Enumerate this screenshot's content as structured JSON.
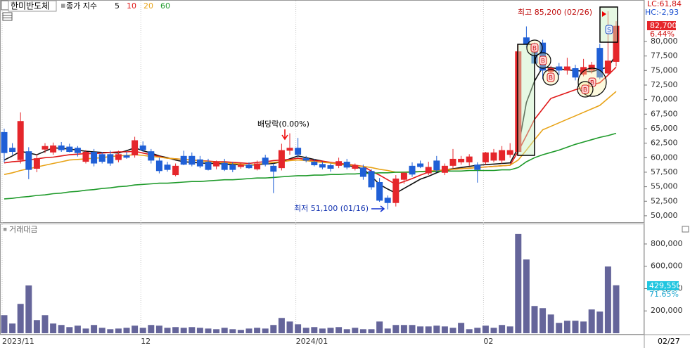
{
  "chart_data": {
    "type": "candlestick",
    "title": "한미반도체",
    "ma_label": "종가 지수",
    "corner_top": "LC:61,84",
    "corner_bottom": "HC:-2,93",
    "price_tag": "82,700",
    "price_change": "6.44%",
    "dividend_note": "배당락(0.00%)",
    "high_note": "최고 85,200 (02/26)",
    "low_note": "최저 51,100 (01/16)",
    "signals": [
      "B",
      "B",
      "B",
      "B",
      "B",
      "S"
    ],
    "up_color": "#e5262b",
    "down_color": "#1f5fd6",
    "categories": [
      "2023/11",
      null,
      null,
      null,
      null,
      null,
      null,
      null,
      null,
      null,
      null,
      null,
      null,
      null,
      null,
      null,
      null,
      "12",
      null,
      null,
      null,
      null,
      null,
      null,
      null,
      null,
      null,
      null,
      null,
      null,
      null,
      null,
      null,
      null,
      null,
      null,
      "2024/01",
      null,
      null,
      null,
      null,
      null,
      null,
      null,
      null,
      null,
      null,
      null,
      null,
      null,
      null,
      null,
      null,
      null,
      null,
      null,
      null,
      null,
      null,
      "02",
      null,
      null,
      null,
      null,
      null,
      null,
      null,
      null,
      null,
      null,
      null,
      null,
      null,
      null,
      null,
      null
    ],
    "x_cursor_label": "02/27",
    "open": [
      64400,
      61700,
      59600,
      61100,
      58100,
      61400,
      60900,
      62100,
      61900,
      61700,
      59300,
      61000,
      60600,
      60600,
      59600,
      60400,
      60400,
      62100,
      61100,
      59500,
      58800,
      57000,
      60300,
      60300,
      59700,
      59300,
      58500,
      59100,
      58800,
      58400,
      58800,
      58000,
      60000,
      58600,
      58200,
      61200,
      61700,
      59900,
      59300,
      58900,
      58700,
      58600,
      59300,
      58100,
      58300,
      57700,
      55800,
      53100,
      52200,
      56200,
      58600,
      59000,
      57300,
      59500,
      57400,
      58600,
      59200,
      59200,
      58800,
      59200,
      59500,
      59500,
      60500,
      61000,
      80700,
      78300,
      79800,
      74800,
      75700,
      75000,
      75400,
      74300,
      75000,
      78900,
      74500,
      76500
    ],
    "high": [
      65000,
      62500,
      67800,
      61800,
      60600,
      62500,
      62600,
      62700,
      62400,
      62000,
      61300,
      61500,
      61000,
      61200,
      61200,
      61000,
      63600,
      62800,
      61500,
      60000,
      59300,
      59000,
      61200,
      60900,
      60300,
      59800,
      59500,
      59800,
      59200,
      59000,
      59200,
      59500,
      60500,
      59000,
      62400,
      64200,
      63400,
      60300,
      59800,
      59300,
      59000,
      60000,
      59800,
      59000,
      58800,
      58000,
      56500,
      53500,
      57000,
      57500,
      59200,
      59500,
      59300,
      60300,
      59000,
      61500,
      60300,
      60600,
      59200,
      61000,
      61500,
      62000,
      62500,
      79500,
      82600,
      79800,
      80300,
      75800,
      76300,
      77200,
      76000,
      77000,
      76500,
      79600,
      85200,
      83500
    ],
    "low": [
      59200,
      60500,
      59000,
      56300,
      57500,
      60800,
      60500,
      61000,
      60900,
      60200,
      59000,
      58500,
      59000,
      58600,
      59200,
      59800,
      60000,
      61000,
      59000,
      57300,
      57600,
      56800,
      58700,
      58500,
      58200,
      57800,
      58000,
      57700,
      57500,
      58100,
      58100,
      57800,
      58500,
      53900,
      57800,
      60500,
      60000,
      59200,
      58500,
      58000,
      57600,
      58200,
      58000,
      57800,
      56200,
      54500,
      52400,
      51100,
      51600,
      55500,
      56700,
      58200,
      57000,
      57500,
      57000,
      58200,
      58800,
      58600,
      55700,
      58800,
      59200,
      59000,
      60000,
      60800,
      79000,
      75500,
      73500,
      73800,
      74200,
      74300,
      73300,
      74000,
      74500,
      73500,
      74300,
      75700
    ],
    "close": [
      60800,
      61000,
      66300,
      57900,
      59900,
      62000,
      62100,
      61300,
      61000,
      60800,
      61000,
      59000,
      59300,
      59000,
      60600,
      60000,
      63000,
      61300,
      59500,
      57700,
      57900,
      58600,
      58800,
      58800,
      58500,
      57900,
      59300,
      57900,
      57900,
      58800,
      58200,
      59000,
      58800,
      57600,
      61300,
      61700,
      60500,
      59500,
      58700,
      58300,
      58100,
      59400,
      58300,
      58700,
      56700,
      54900,
      52600,
      52200,
      56400,
      57400,
      57100,
      58400,
      58400,
      57800,
      58600,
      59800,
      59800,
      60200,
      57900,
      60900,
      60900,
      61300,
      61300,
      78300,
      79500,
      76200,
      75000,
      75400,
      75000,
      75700,
      73800,
      75600,
      76000,
      73800,
      76700,
      82700
    ],
    "series": [
      {
        "name": "5",
        "color": "#111111",
        "values": [
          59600,
          60300,
          61100,
          60800,
          60500,
          61100,
          61700,
          61600,
          61500,
          61300,
          61100,
          61000,
          60900,
          60900,
          60800,
          61200,
          61700,
          61200,
          60800,
          60300,
          60000,
          59600,
          59300,
          59200,
          59100,
          59000,
          59000,
          58900,
          58800,
          58800,
          58700,
          58800,
          58900,
          59000,
          59300,
          59800,
          60300,
          60000,
          59700,
          59400,
          59100,
          58900,
          58700,
          58400,
          58100,
          56800,
          55400,
          54600,
          53900,
          54700,
          55500,
          56300,
          56800,
          57400,
          57900,
          58100,
          58300,
          58500,
          58700,
          58800,
          58900,
          59000,
          59100,
          61700,
          69500,
          73200,
          75600,
          75500,
          75300,
          75100,
          75000,
          74900,
          74800,
          75200,
          75600,
          77700
        ]
      },
      {
        "name": "10",
        "color": "#e01818",
        "values": [
          59100,
          59300,
          59400,
          59600,
          59800,
          60000,
          60100,
          60300,
          60500,
          60600,
          60700,
          60700,
          60800,
          60900,
          61000,
          61000,
          61100,
          60800,
          60500,
          60200,
          59900,
          59800,
          59700,
          59600,
          59500,
          59400,
          59300,
          59300,
          59200,
          59100,
          59000,
          59200,
          59300,
          59500,
          59600,
          59700,
          59900,
          59700,
          59500,
          59400,
          59200,
          59000,
          58900,
          58700,
          58500,
          57700,
          57000,
          56200,
          55400,
          55900,
          56400,
          57000,
          57500,
          57700,
          57800,
          58000,
          58100,
          58200,
          58300,
          58400,
          58500,
          58600,
          58700,
          61100,
          63800,
          66600,
          68400,
          70200,
          70700,
          71200,
          71700,
          72100,
          72500,
          72900,
          74200,
          75600
        ]
      },
      {
        "name": "20",
        "color": "#e8a317",
        "values": [
          57100,
          57400,
          57800,
          58100,
          58400,
          58700,
          59000,
          59300,
          59600,
          59700,
          59800,
          59900,
          60000,
          60200,
          60300,
          60400,
          60500,
          60400,
          60200,
          60100,
          59900,
          59800,
          59700,
          59600,
          59500,
          59300,
          59200,
          59100,
          59000,
          58900,
          58700,
          58900,
          59000,
          59200,
          59300,
          59500,
          59600,
          59500,
          59300,
          59200,
          59100,
          58900,
          58800,
          58600,
          58500,
          58300,
          58000,
          57800,
          57500,
          57500,
          57600,
          57600,
          57700,
          57800,
          57900,
          58000,
          58100,
          58200,
          58300,
          58400,
          58500,
          58600,
          58700,
          59600,
          61300,
          63100,
          64800,
          65400,
          66000,
          66600,
          67200,
          67800,
          68400,
          69000,
          70200,
          71400
        ]
      },
      {
        "name": "60",
        "color": "#1e9a2a",
        "values": [
          52900,
          53000,
          53200,
          53300,
          53500,
          53600,
          53800,
          53900,
          54100,
          54200,
          54400,
          54500,
          54700,
          54800,
          55000,
          55100,
          55300,
          55400,
          55500,
          55600,
          55600,
          55700,
          55800,
          55900,
          55900,
          56000,
          56100,
          56200,
          56200,
          56300,
          56400,
          56500,
          56500,
          56600,
          56700,
          56800,
          56900,
          56900,
          57000,
          57000,
          57100,
          57100,
          57200,
          57200,
          57300,
          57300,
          57400,
          57400,
          57500,
          57500,
          57500,
          57600,
          57600,
          57600,
          57700,
          57700,
          57700,
          57800,
          57800,
          57800,
          57800,
          57900,
          57900,
          58300,
          59300,
          60000,
          60500,
          60900,
          61300,
          61800,
          62300,
          62700,
          63100,
          63500,
          63800,
          64200
        ]
      }
    ],
    "ylim": [
      48900,
      86900
    ],
    "yticks": [
      {
        "value": 50000,
        "label": "50,000"
      },
      {
        "value": 52500,
        "label": "52,500"
      },
      {
        "value": 55000,
        "label": "55,000"
      },
      {
        "value": 57500,
        "label": "57,500"
      },
      {
        "value": 60000,
        "label": "60,000"
      },
      {
        "value": 62500,
        "label": "62,500"
      },
      {
        "value": 65000,
        "label": "65,000"
      },
      {
        "value": 67500,
        "label": "67,500"
      },
      {
        "value": 70000,
        "label": "70,000"
      },
      {
        "value": 72500,
        "label": "72,500"
      },
      {
        "value": 75000,
        "label": "75,000"
      },
      {
        "value": 77500,
        "label": "77,500"
      },
      {
        "value": 80000,
        "label": "80,000"
      }
    ],
    "volume": {
      "title": "거래대금",
      "color": "#65659a",
      "tag": "429,550",
      "tag_change": "71.65%",
      "values": [
        162000,
        87000,
        263000,
        428000,
        118000,
        162000,
        87000,
        74000,
        55000,
        68000,
        42000,
        74000,
        49000,
        36000,
        42000,
        49000,
        68000,
        49000,
        74000,
        68000,
        49000,
        55000,
        49000,
        55000,
        49000,
        42000,
        36000,
        49000,
        36000,
        30000,
        42000,
        49000,
        42000,
        74000,
        137000,
        105000,
        80000,
        49000,
        55000,
        42000,
        49000,
        55000,
        36000,
        49000,
        36000,
        36000,
        105000,
        42000,
        74000,
        74000,
        74000,
        61000,
        61000,
        68000,
        61000,
        49000,
        93000,
        36000,
        49000,
        68000,
        49000,
        74000,
        61000,
        889000,
        661000,
        244000,
        225000,
        168000,
        93000,
        112000,
        112000,
        105000,
        213000,
        194000,
        598000,
        429550
      ],
      "ylim": [
        0,
        970000
      ],
      "yticks": [
        {
          "value": 200000,
          "label": "200,000"
        },
        {
          "value": 400000,
          "label": "400,000"
        },
        {
          "value": 600000,
          "label": "600,000"
        },
        {
          "value": 800000,
          "label": "800,000"
        }
      ]
    }
  }
}
